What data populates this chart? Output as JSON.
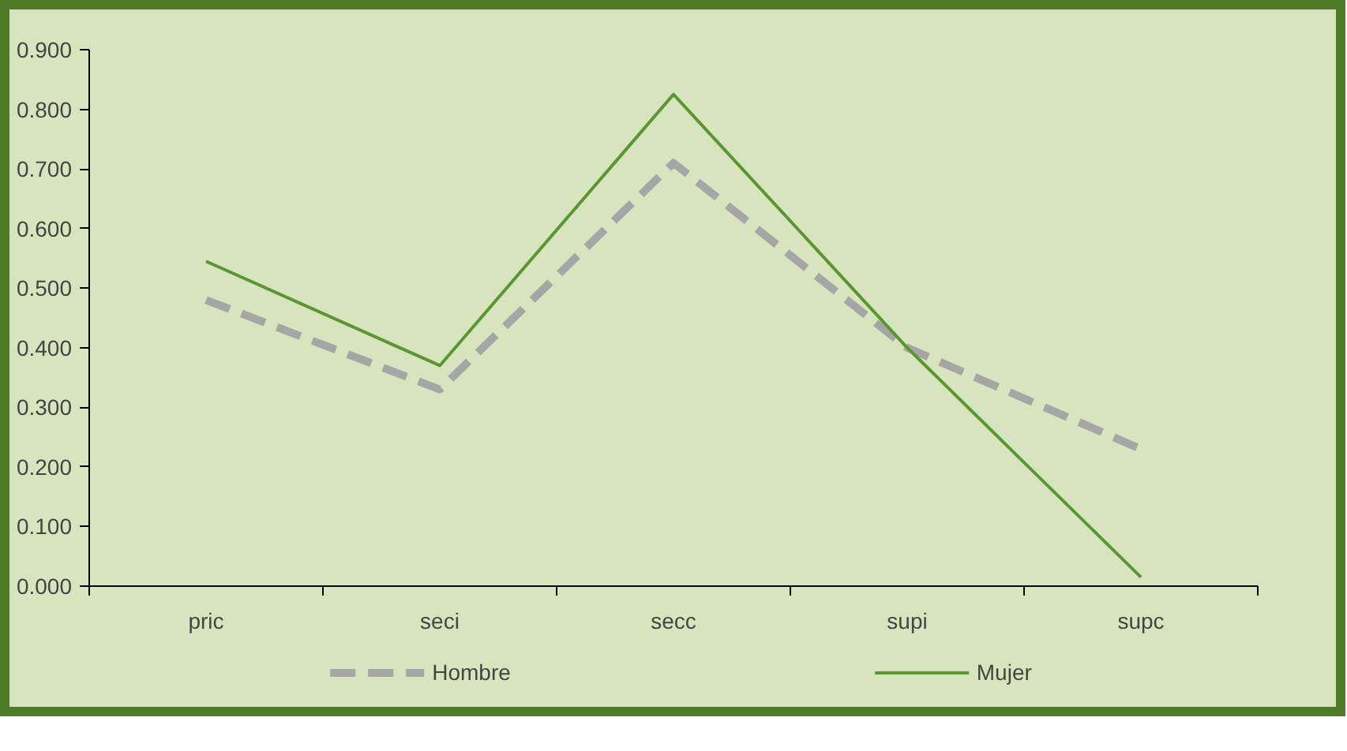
{
  "chart_data": {
    "type": "line",
    "categories": [
      "pric",
      "seci",
      "secc",
      "supi",
      "supc"
    ],
    "series": [
      {
        "name": "Hombre",
        "color": "#a6a6a6",
        "line_style": "dashed",
        "values": [
          0.48,
          0.33,
          0.71,
          0.4,
          0.23
        ]
      },
      {
        "name": "Mujer",
        "color": "#5b9632",
        "line_style": "solid",
        "values": [
          0.545,
          0.37,
          0.825,
          0.4,
          0.015
        ]
      }
    ],
    "ylim": [
      0,
      0.9
    ],
    "yticks": [
      {
        "value": 0,
        "label": "0.000"
      },
      {
        "value": 0.1,
        "label": "0.100"
      },
      {
        "value": 0.2,
        "label": "0.200"
      },
      {
        "value": 0.3,
        "label": "0.300"
      },
      {
        "value": 0.4,
        "label": "0.400"
      },
      {
        "value": 0.5,
        "label": "0.500"
      },
      {
        "value": 0.6,
        "label": "0.600"
      },
      {
        "value": 0.7,
        "label": "0.700"
      },
      {
        "value": 0.8,
        "label": "0.800"
      },
      {
        "value": 0.9,
        "label": "0.900"
      }
    ],
    "grid": false,
    "legend": "bottom",
    "marker": "none"
  }
}
